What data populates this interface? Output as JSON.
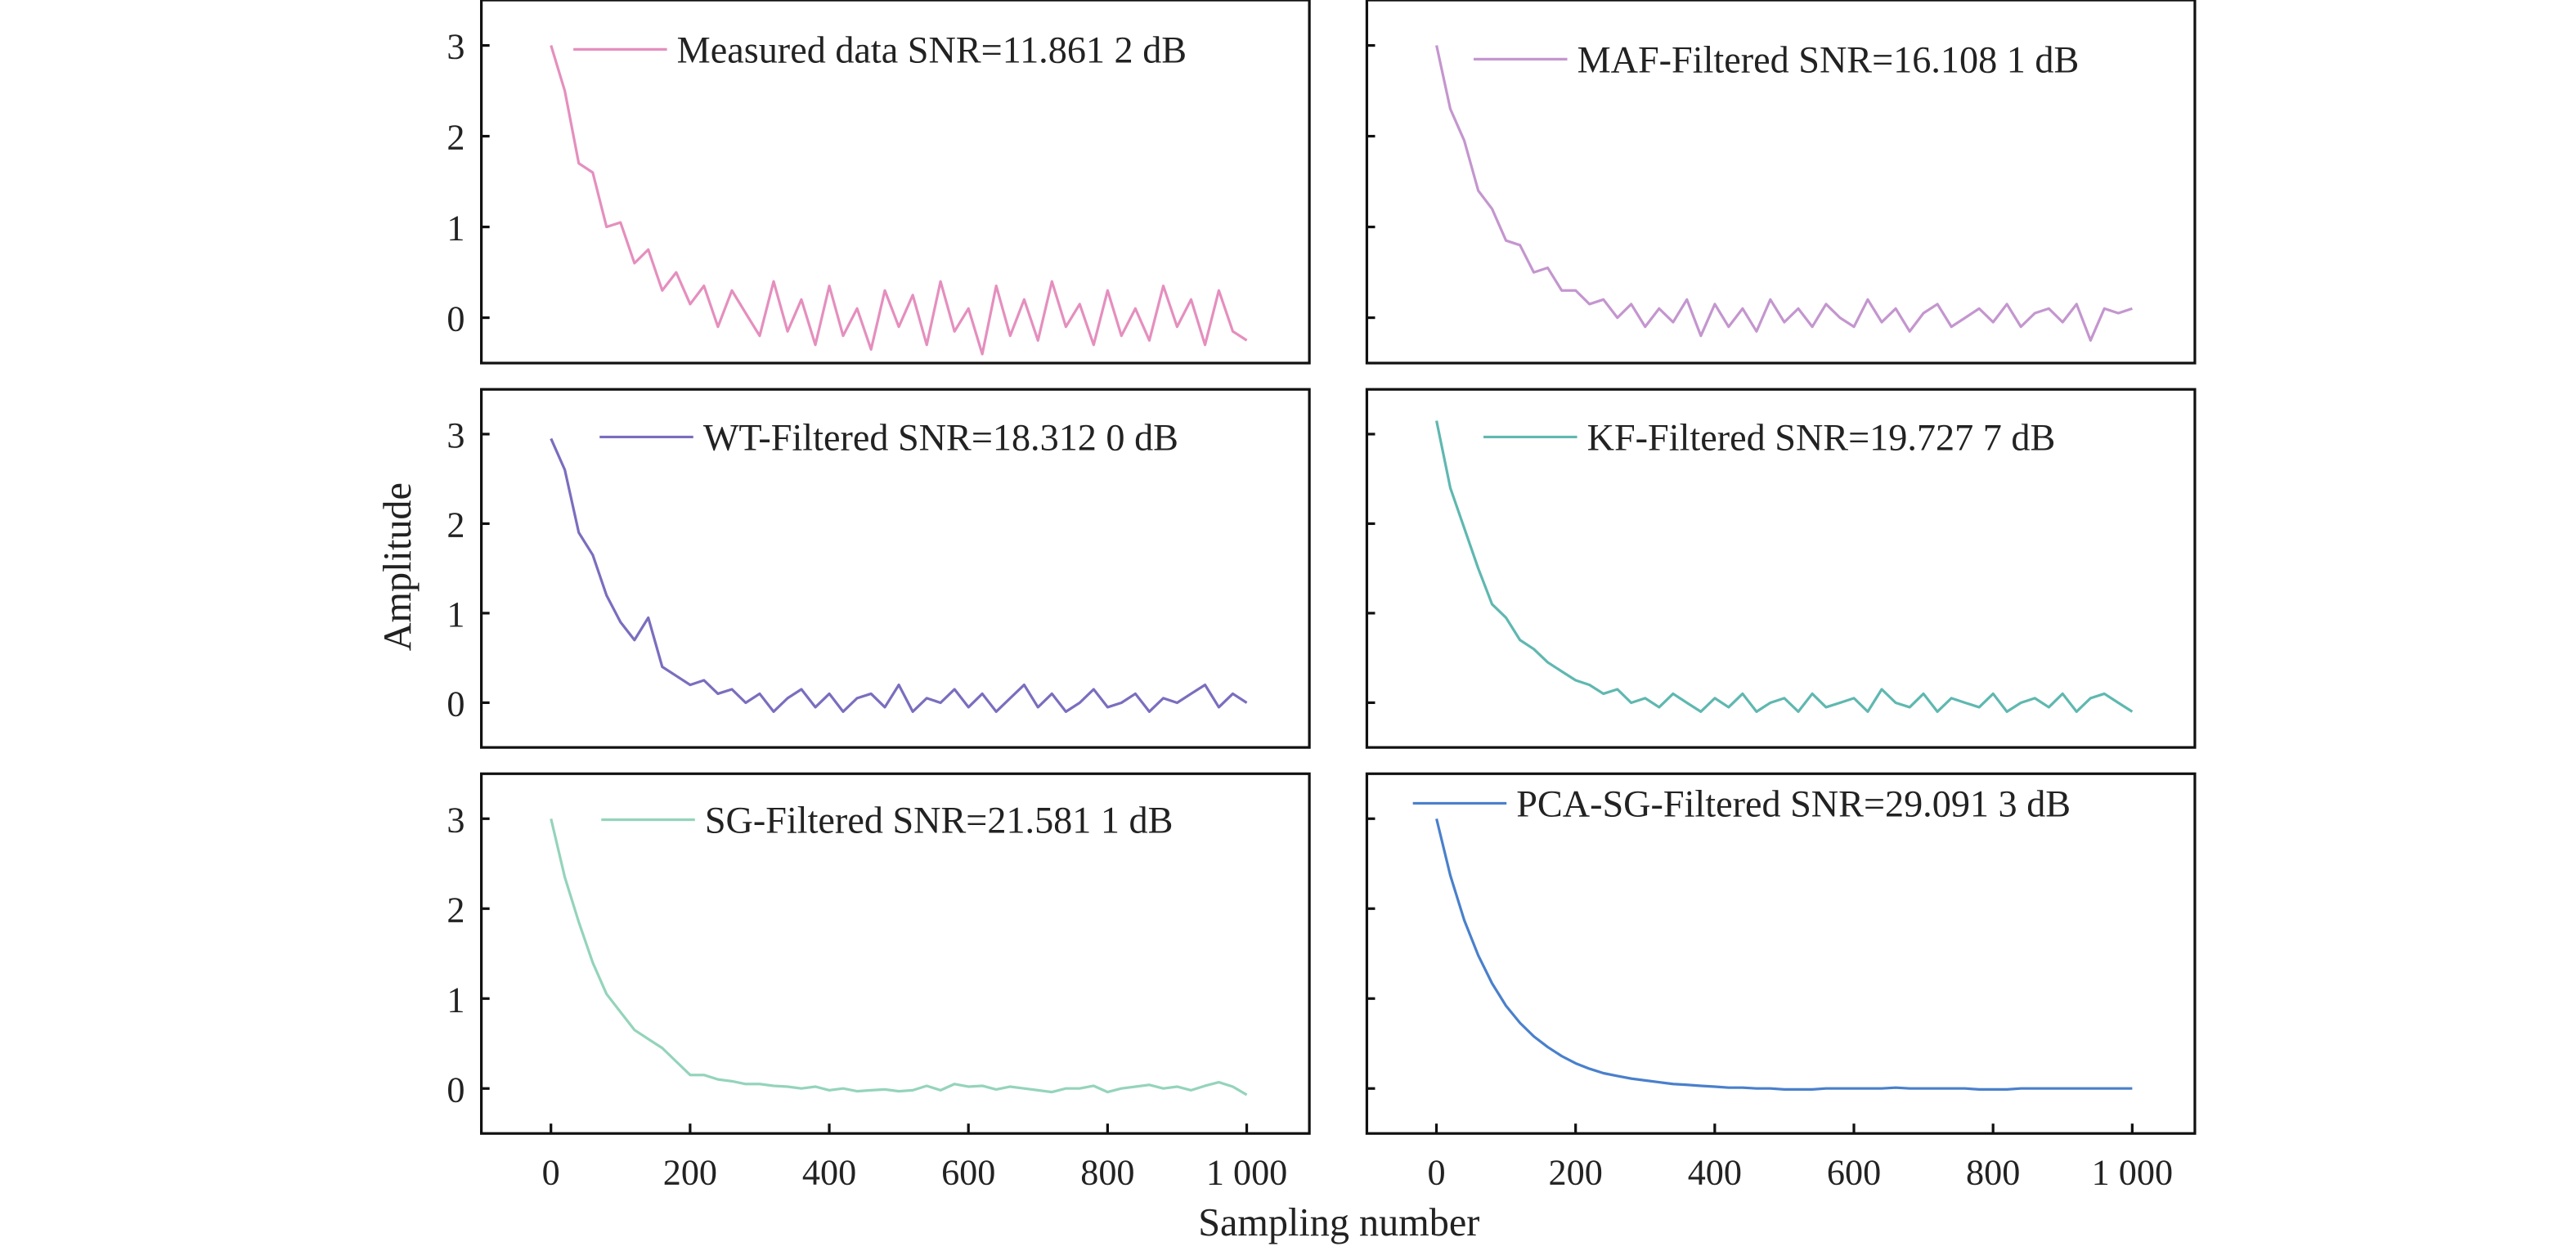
{
  "chart_data": {
    "type": "line",
    "layout": "3x2 grid of subplots, shared axes",
    "xlabel": "Sampling number",
    "ylabel": "Amplitude",
    "xlim": [
      -100,
      1090
    ],
    "ylim": [
      -0.5,
      3.5
    ],
    "xticks": [
      0,
      200,
      400,
      600,
      800,
      1000
    ],
    "xtick_labels": [
      "0",
      "200",
      "400",
      "600",
      "800",
      "1 000"
    ],
    "yticks": [
      0,
      1,
      2,
      3
    ],
    "ytick_labels": [
      "0",
      "1",
      "2",
      "3"
    ],
    "grid": false,
    "legend_placement": "top",
    "x": [
      0,
      20,
      40,
      60,
      80,
      100,
      120,
      140,
      160,
      180,
      200,
      220,
      240,
      260,
      280,
      300,
      320,
      340,
      360,
      380,
      400,
      420,
      440,
      460,
      480,
      500,
      520,
      540,
      560,
      580,
      600,
      620,
      640,
      660,
      680,
      700,
      720,
      740,
      760,
      780,
      800,
      820,
      840,
      860,
      880,
      900,
      920,
      940,
      960,
      980,
      1000
    ],
    "panels": [
      {
        "name": "Measured data SNR=11.861 2 dB",
        "color": "#e58fbe",
        "values": [
          3.0,
          2.5,
          1.7,
          1.6,
          1.0,
          1.05,
          0.6,
          0.75,
          0.3,
          0.5,
          0.15,
          0.35,
          -0.1,
          0.3,
          0.05,
          -0.2,
          0.4,
          -0.15,
          0.2,
          -0.3,
          0.35,
          -0.2,
          0.1,
          -0.35,
          0.3,
          -0.1,
          0.25,
          -0.3,
          0.4,
          -0.15,
          0.1,
          -0.4,
          0.35,
          -0.2,
          0.2,
          -0.25,
          0.4,
          -0.1,
          0.15,
          -0.3,
          0.3,
          -0.2,
          0.1,
          -0.25,
          0.35,
          -0.1,
          0.2,
          -0.3,
          0.3,
          -0.15,
          -0.25
        ]
      },
      {
        "name": "MAF-Filtered SNR=16.108 1 dB",
        "color": "#c496cf",
        "values": [
          3.0,
          2.3,
          1.95,
          1.4,
          1.2,
          0.85,
          0.8,
          0.5,
          0.55,
          0.3,
          0.3,
          0.15,
          0.2,
          0.0,
          0.15,
          -0.1,
          0.1,
          -0.05,
          0.2,
          -0.2,
          0.15,
          -0.1,
          0.1,
          -0.15,
          0.2,
          -0.05,
          0.1,
          -0.1,
          0.15,
          0.0,
          -0.1,
          0.2,
          -0.05,
          0.1,
          -0.15,
          0.05,
          0.15,
          -0.1,
          0.0,
          0.1,
          -0.05,
          0.15,
          -0.1,
          0.05,
          0.1,
          -0.05,
          0.15,
          -0.25,
          0.1,
          0.05,
          0.1
        ]
      },
      {
        "name": "WT-Filtered SNR=18.312 0 dB",
        "color": "#7a6ebf",
        "values": [
          2.95,
          2.6,
          1.9,
          1.65,
          1.2,
          0.9,
          0.7,
          0.95,
          0.4,
          0.3,
          0.2,
          0.25,
          0.1,
          0.15,
          0.0,
          0.1,
          -0.1,
          0.05,
          0.15,
          -0.05,
          0.1,
          -0.1,
          0.05,
          0.1,
          -0.05,
          0.2,
          -0.1,
          0.05,
          0.0,
          0.15,
          -0.05,
          0.1,
          -0.1,
          0.05,
          0.2,
          -0.05,
          0.1,
          -0.1,
          0.0,
          0.15,
          -0.05,
          0.0,
          0.1,
          -0.1,
          0.05,
          0.0,
          0.1,
          0.2,
          -0.05,
          0.1,
          0.0
        ]
      },
      {
        "name": "KF-Filtered SNR=19.727 7 dB",
        "color": "#5fb8b0",
        "values": [
          3.15,
          2.4,
          1.95,
          1.5,
          1.1,
          0.95,
          0.7,
          0.6,
          0.45,
          0.35,
          0.25,
          0.2,
          0.1,
          0.15,
          0.0,
          0.05,
          -0.05,
          0.1,
          0.0,
          -0.1,
          0.05,
          -0.05,
          0.1,
          -0.1,
          0.0,
          0.05,
          -0.1,
          0.1,
          -0.05,
          0.0,
          0.05,
          -0.1,
          0.15,
          0.0,
          -0.05,
          0.1,
          -0.1,
          0.05,
          0.0,
          -0.05,
          0.1,
          -0.1,
          0.0,
          0.05,
          -0.05,
          0.1,
          -0.1,
          0.05,
          0.1,
          0.0,
          -0.1
        ]
      },
      {
        "name": "SG-Filtered SNR=21.581 1 dB",
        "color": "#94d4bb",
        "values": [
          3.0,
          2.35,
          1.85,
          1.4,
          1.05,
          0.85,
          0.65,
          0.55,
          0.45,
          0.3,
          0.15,
          0.15,
          0.1,
          0.08,
          0.05,
          0.05,
          0.03,
          0.02,
          0.0,
          0.02,
          -0.02,
          0.0,
          -0.03,
          -0.02,
          -0.01,
          -0.03,
          -0.02,
          0.03,
          -0.02,
          0.05,
          0.02,
          0.03,
          -0.01,
          0.02,
          0.0,
          -0.02,
          -0.04,
          0.0,
          0.0,
          0.03,
          -0.04,
          0.0,
          0.02,
          0.04,
          0.0,
          0.02,
          -0.02,
          0.03,
          0.07,
          0.02,
          -0.07
        ]
      },
      {
        "name": "PCA-SG-Filtered SNR=29.091 3 dB",
        "color": "#4a80cc",
        "values": [
          3.0,
          2.37,
          1.87,
          1.48,
          1.17,
          0.92,
          0.73,
          0.58,
          0.46,
          0.36,
          0.28,
          0.22,
          0.17,
          0.14,
          0.11,
          0.09,
          0.07,
          0.05,
          0.04,
          0.03,
          0.02,
          0.01,
          0.01,
          0,
          0,
          -0.01,
          -0.01,
          -0.01,
          0,
          0,
          0,
          0,
          0,
          0.01,
          0,
          0,
          0,
          0,
          0,
          -0.01,
          -0.01,
          -0.01,
          0,
          0,
          0,
          0,
          0,
          0,
          0,
          0,
          0
        ]
      }
    ]
  }
}
